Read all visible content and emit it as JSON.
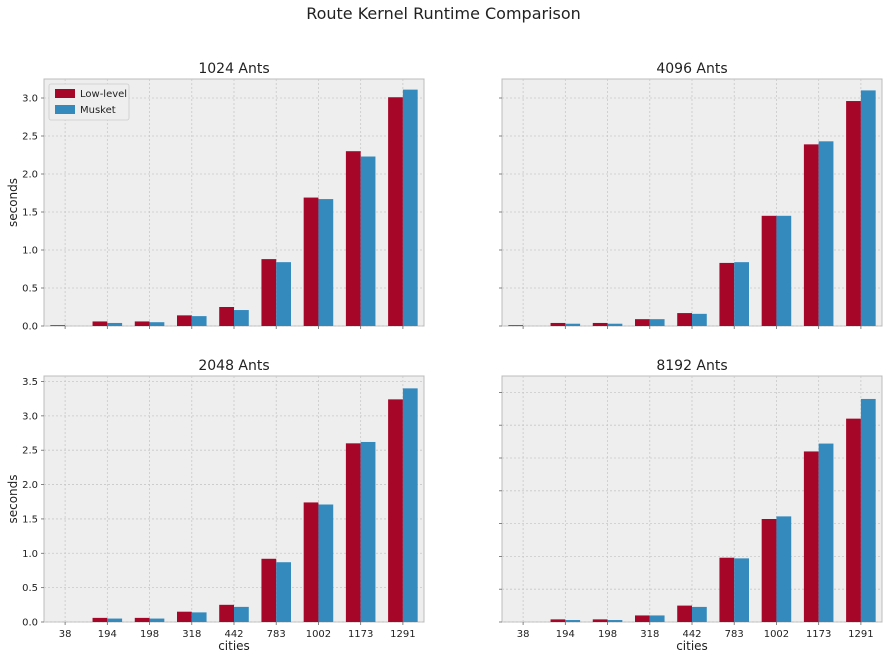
{
  "figure": {
    "suptitle": "Route Kernel Runtime Comparison"
  },
  "colors": {
    "low_level": "#A60628",
    "musket": "#348ABD",
    "panel_bg": "#EEEEEE",
    "grid": "#C8C8C8",
    "spine": "#BCBCBC"
  },
  "chart_data": [
    {
      "type": "bar",
      "title": "1024 Ants",
      "xlabel": "",
      "ylabel": "seconds",
      "categories": [
        "38",
        "194",
        "198",
        "318",
        "442",
        "783",
        "1002",
        "1173",
        "1291"
      ],
      "ylim": [
        0,
        3.25
      ],
      "yticks": [
        0.0,
        0.5,
        1.0,
        1.5,
        2.0,
        2.5,
        3.0
      ],
      "ytick_labels": [
        "0.0",
        "0.5",
        "1.0",
        "1.5",
        "2.0",
        "2.5",
        "3.0"
      ],
      "show_xticklabels": false,
      "legend": "top-left",
      "series": [
        {
          "name": "Low-level",
          "values": [
            0.01,
            0.06,
            0.06,
            0.14,
            0.25,
            0.88,
            1.69,
            2.3,
            3.01
          ]
        },
        {
          "name": "Musket",
          "values": [
            0.0,
            0.04,
            0.05,
            0.13,
            0.21,
            0.84,
            1.67,
            2.23,
            3.11
          ]
        }
      ],
      "grid": true
    },
    {
      "type": "bar",
      "title": "4096 Ants",
      "xlabel": "",
      "ylabel": "",
      "categories": [
        "38",
        "194",
        "198",
        "318",
        "442",
        "783",
        "1002",
        "1173",
        "1291"
      ],
      "ylim": [
        0,
        3.25
      ],
      "yticks": [
        0.0,
        0.5,
        1.0,
        1.5,
        2.0,
        2.5,
        3.0
      ],
      "ytick_labels": [
        "",
        "",
        "",
        "",
        "",
        "",
        ""
      ],
      "show_xticklabels": false,
      "series": [
        {
          "name": "Low-level",
          "values": [
            0.01,
            0.04,
            0.04,
            0.09,
            0.17,
            0.83,
            1.45,
            2.39,
            2.96
          ]
        },
        {
          "name": "Musket",
          "values": [
            0.0,
            0.03,
            0.03,
            0.09,
            0.16,
            0.84,
            1.45,
            2.43,
            3.1
          ]
        }
      ],
      "grid": true
    },
    {
      "type": "bar",
      "title": "2048 Ants",
      "xlabel": "cities",
      "ylabel": "seconds",
      "categories": [
        "38",
        "194",
        "198",
        "318",
        "442",
        "783",
        "1002",
        "1173",
        "1291"
      ],
      "ylim": [
        0,
        3.58
      ],
      "yticks": [
        0.0,
        0.5,
        1.0,
        1.5,
        2.0,
        2.5,
        3.0,
        3.5
      ],
      "ytick_labels": [
        "0.0",
        "0.5",
        "1.0",
        "1.5",
        "2.0",
        "2.5",
        "3.0",
        "3.5"
      ],
      "show_xticklabels": true,
      "series": [
        {
          "name": "Low-level",
          "values": [
            0.0,
            0.06,
            0.06,
            0.15,
            0.25,
            0.92,
            1.74,
            2.6,
            3.24
          ]
        },
        {
          "name": "Musket",
          "values": [
            0.0,
            0.05,
            0.05,
            0.14,
            0.22,
            0.87,
            1.71,
            2.62,
            3.4
          ]
        }
      ],
      "grid": true
    },
    {
      "type": "bar",
      "title": "8192 Ants",
      "xlabel": "cities",
      "ylabel": "",
      "categories": [
        "38",
        "194",
        "198",
        "318",
        "442",
        "783",
        "1002",
        "1173",
        "1291"
      ],
      "ylim": [
        0,
        3.75
      ],
      "yticks": [
        0.0,
        0.5,
        1.0,
        1.5,
        2.0,
        2.5,
        3.0,
        3.5
      ],
      "ytick_labels": [
        "",
        "",
        "",
        "",
        "",
        "",
        "",
        ""
      ],
      "show_xticklabels": true,
      "series": [
        {
          "name": "Low-level",
          "values": [
            0.0,
            0.04,
            0.04,
            0.1,
            0.25,
            0.98,
            1.57,
            2.6,
            3.1
          ]
        },
        {
          "name": "Musket",
          "values": [
            0.0,
            0.03,
            0.03,
            0.1,
            0.23,
            0.97,
            1.61,
            2.72,
            3.4
          ]
        }
      ],
      "grid": true
    }
  ]
}
